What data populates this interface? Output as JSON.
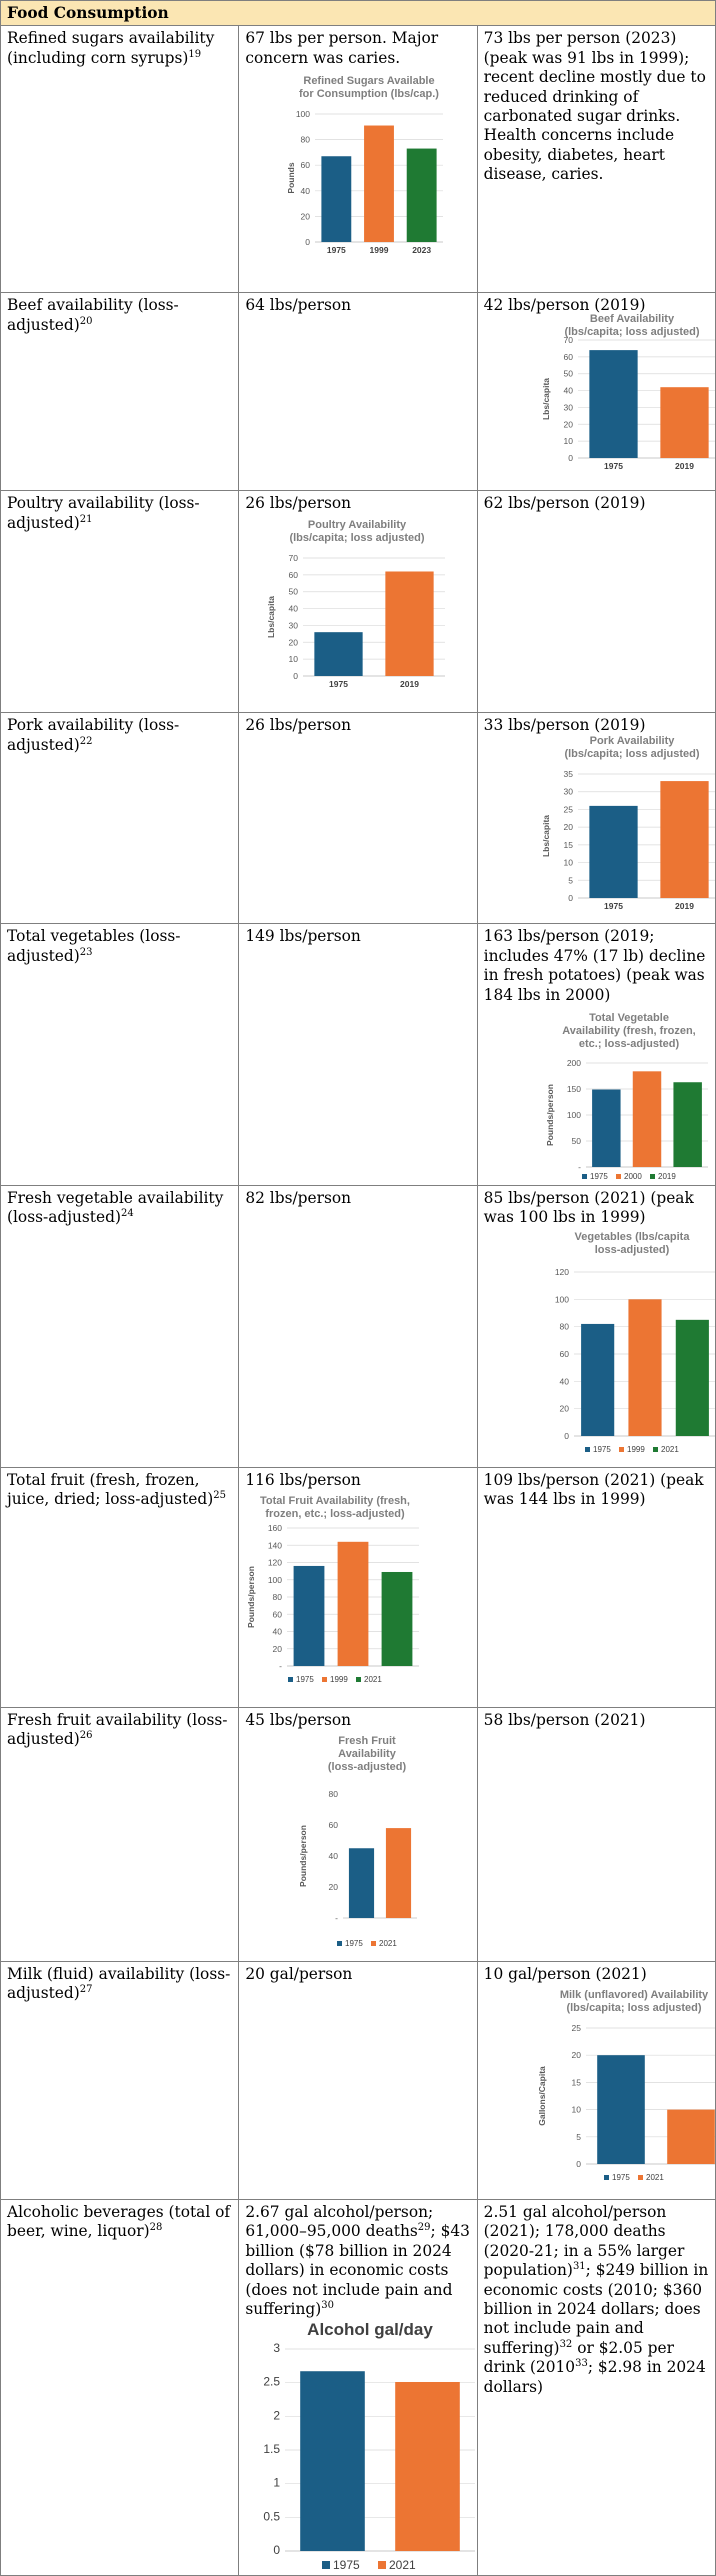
{
  "section_title": "Food Consumption",
  "colors": {
    "blue": "#1b5e86",
    "orange": "#ec7533",
    "green": "#1f7a33"
  },
  "rows": [
    {
      "label": "Refined sugars availability (including corn syrups)",
      "ref": "19",
      "c1_text": "67 lbs per person. Major concern was caries.",
      "c2_text": "73 lbs per person (2023) (peak was 91 lbs in 1999); recent decline mostly due to reduced drinking of carbonated sugar drinks. Health concerns include obesity, diabetes, heart disease, caries."
    },
    {
      "label": "Beef availability (loss-adjusted)",
      "ref": "20",
      "c1_text": "64 lbs/person",
      "c2_text": "42 lbs/person (2019)"
    },
    {
      "label": "Poultry availability (loss-adjusted)",
      "ref": "21",
      "c1_text": "26 lbs/person",
      "c2_text": "62 lbs/person (2019)"
    },
    {
      "label": "Pork availability (loss-adjusted)",
      "ref": "22",
      "c1_text": "26 lbs/person",
      "c2_text": "33 lbs/person (2019)"
    },
    {
      "label": "Total vegetables (loss-adjusted)",
      "ref": "23",
      "c1_text": "149 lbs/person",
      "c2_text": "163 lbs/person (2019; includes 47% (17 lb) decline in fresh potatoes) (peak was 184 lbs in 2000)"
    },
    {
      "label": "Fresh vegetable availability (loss-adjusted)",
      "ref": "24",
      "c1_text": "82 lbs/person",
      "c2_text": "85 lbs/person (2021) (peak was 100 lbs in 1999)"
    },
    {
      "label": "Total fruit (fresh, frozen, juice, dried; loss-adjusted)",
      "ref": "25",
      "c1_text": "116 lbs/person",
      "c2_text": "109 lbs/person (2021) (peak was 144 lbs in 1999)"
    },
    {
      "label": "Fresh fruit availability (loss-adjusted)",
      "ref": "26",
      "c1_text": "45 lbs/person",
      "c2_text": "58 lbs/person (2021)"
    },
    {
      "label": "Milk (fluid) availability (loss-adjusted)",
      "ref": "27",
      "c1_text": "20 gal/person",
      "c2_text": "10 gal/person (2021)"
    },
    {
      "label": "Alcoholic beverages (total of beer, wine, liquor)",
      "ref": "28",
      "c1_parts": [
        "2.67 gal alcohol/person; 61,000–95,000 deaths",
        "29",
        "; $43 billion ($78 billion in 2024 dollars) in economic costs (does not include pain and suffering)",
        "30"
      ],
      "c2_parts": [
        "2.51 gal alcohol/person (2021); 178,000 deaths (2020-21; in a 55% larger population)",
        "31",
        "; $249 billion in economic costs (2010; $360 billion in 2024 dollars; does not include pain and suffering)",
        "32",
        " or $2.05 per drink (2010",
        "33",
        "; $2.98 in 2024 dollars)"
      ]
    }
  ],
  "chart_data": [
    {
      "id": "sugar",
      "type": "bar",
      "title": [
        "Refined Sugars Available",
        "for Consumption (lbs/cap.)"
      ],
      "ylabel": "Pounds",
      "categories": [
        "1975",
        "1999",
        "2023"
      ],
      "values": [
        67,
        91,
        73
      ],
      "ylim": [
        0,
        100
      ],
      "yticks": [
        0,
        20,
        40,
        60,
        80,
        100
      ],
      "grid": true,
      "legend": "none",
      "xlabels": true
    },
    {
      "id": "beef",
      "type": "bar",
      "title": [
        "Beef Availability",
        "(lbs/capita; loss adjusted)"
      ],
      "ylabel": "Lbs/capita",
      "categories": [
        "1975",
        "2019"
      ],
      "values": [
        64,
        42
      ],
      "ylim": [
        0,
        70
      ],
      "yticks": [
        0,
        10,
        20,
        30,
        40,
        50,
        60,
        70
      ],
      "grid": true,
      "legend": "none",
      "xlabels": true
    },
    {
      "id": "poultry",
      "type": "bar",
      "title": [
        "Poultry Availability",
        "(lbs/capita; loss adjusted)"
      ],
      "ylabel": "Lbs/capita",
      "categories": [
        "1975",
        "2019"
      ],
      "values": [
        26,
        62
      ],
      "ylim": [
        0,
        70
      ],
      "yticks": [
        0,
        10,
        20,
        30,
        40,
        50,
        60,
        70
      ],
      "grid": true,
      "legend": "none",
      "xlabels": true
    },
    {
      "id": "pork",
      "type": "bar",
      "title": [
        "Pork Availability",
        "(lbs/capita; loss adjusted)"
      ],
      "ylabel": "Lbs/capita",
      "categories": [
        "1975",
        "2019"
      ],
      "values": [
        26,
        33
      ],
      "ylim": [
        0,
        35
      ],
      "yticks": [
        0,
        5,
        10,
        15,
        20,
        25,
        30,
        35
      ],
      "grid": true,
      "legend": "none",
      "xlabels": true
    },
    {
      "id": "totveg",
      "type": "bar",
      "title": [
        "Total Vegetable",
        "Availability (fresh, frozen,",
        "etc.; loss-adjusted)"
      ],
      "ylabel": "Pounds/person",
      "categories": [
        "1975",
        "2000",
        "2019"
      ],
      "values": [
        149,
        184,
        163
      ],
      "ylim": [
        0,
        200
      ],
      "yticks": [
        0,
        50,
        100,
        150,
        200
      ],
      "ytick_labels": [
        "-",
        "50",
        "100",
        "150",
        "200"
      ],
      "grid": true,
      "legend": "bottom",
      "xlabels": false
    },
    {
      "id": "freshveg",
      "type": "bar",
      "title": [
        "Vegetables (lbs/capita",
        "loss-adjusted)"
      ],
      "ylabel": "",
      "categories": [
        "1975",
        "1999",
        "2021"
      ],
      "values": [
        82,
        100,
        85
      ],
      "ylim": [
        0,
        120
      ],
      "yticks": [
        0,
        20,
        40,
        60,
        80,
        100,
        120
      ],
      "grid": true,
      "legend": "bottom",
      "xlabels": false
    },
    {
      "id": "totfruit",
      "type": "bar",
      "title": [
        "Total Fruit Availability (fresh,",
        "frozen, etc.; loss-adjusted)"
      ],
      "ylabel": "Pounds/person",
      "categories": [
        "1975",
        "1999",
        "2021"
      ],
      "values": [
        116,
        144,
        109
      ],
      "ylim": [
        0,
        160
      ],
      "yticks": [
        0,
        20,
        40,
        60,
        80,
        100,
        120,
        140,
        160
      ],
      "ytick_labels": [
        "-",
        "20",
        "40",
        "60",
        "80",
        "100",
        "120",
        "140",
        "160"
      ],
      "grid": true,
      "legend": "bottom",
      "xlabels": false
    },
    {
      "id": "freshfruit",
      "type": "bar",
      "title": [
        "Fresh Fruit",
        "Availability",
        "(loss-adjusted)"
      ],
      "ylabel": "Pounds/person",
      "categories": [
        "1975",
        "2021"
      ],
      "values": [
        45,
        58
      ],
      "ylim": [
        0,
        80
      ],
      "yticks": [
        0,
        20,
        40,
        60,
        80
      ],
      "ytick_labels": [
        "-",
        "20",
        "40",
        "60",
        "80"
      ],
      "grid": false,
      "legend": "bottom",
      "xlabels": false
    },
    {
      "id": "milk",
      "type": "bar",
      "title": [
        "Milk (unflavored) Availability",
        "(lbs/capita; loss adjusted)"
      ],
      "ylabel": "Gallons/Capita",
      "categories": [
        "1975",
        "2021"
      ],
      "values": [
        20,
        10
      ],
      "ylim": [
        0,
        25
      ],
      "yticks": [
        0,
        5,
        10,
        15,
        20,
        25
      ],
      "grid": true,
      "legend": "bottom",
      "xlabels": false
    },
    {
      "id": "alcohol",
      "type": "bar",
      "title": [
        "Alcohol gal/day"
      ],
      "ylabel": "",
      "categories": [
        "1975",
        "2021"
      ],
      "values": [
        2.67,
        2.51
      ],
      "ylim": [
        0,
        3
      ],
      "yticks": [
        0,
        0.5,
        1,
        1.5,
        2,
        2.5,
        3
      ],
      "grid": true,
      "legend": "bottom",
      "xlabels": false
    }
  ]
}
